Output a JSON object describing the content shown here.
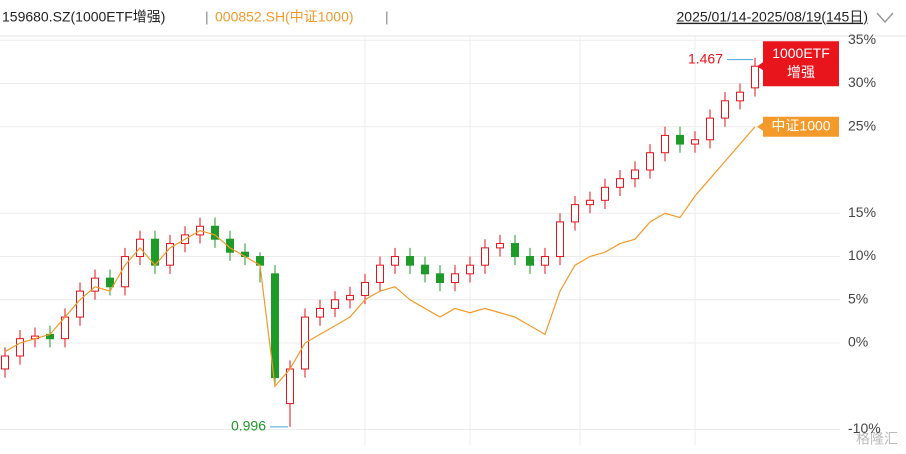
{
  "chart_data": {
    "type": "candlestick",
    "series": [
      {
        "name": "159680.SZ(1000ETF增强)",
        "color": "#e5131b",
        "down_color": "#1e9a28",
        "open": [
          -3,
          -1.5,
          0.5,
          1,
          0.5,
          3,
          6,
          7.5,
          6.5,
          10,
          12,
          9,
          11.5,
          12.5,
          13.5,
          12,
          10.5,
          10,
          8,
          -7,
          -3,
          3,
          4,
          5,
          5.5,
          7,
          9,
          10,
          9,
          8,
          7,
          8,
          9,
          11,
          11.5,
          10,
          9,
          10,
          14,
          16,
          16.5,
          18,
          19,
          20,
          22,
          24,
          23,
          23.5,
          26,
          28,
          29.5
        ],
        "high": [
          -0.5,
          1.5,
          1.8,
          2,
          4,
          7,
          8.5,
          8.5,
          11,
          13,
          13,
          12.5,
          13.5,
          14.5,
          14.5,
          13,
          11.5,
          10.5,
          9,
          -2,
          4,
          5,
          6,
          6.5,
          8,
          10,
          11,
          11,
          10,
          9,
          9,
          10,
          12,
          12.5,
          12.5,
          11,
          11,
          15,
          17,
          17.5,
          19,
          20,
          21,
          23,
          25,
          25,
          24.5,
          27,
          29,
          30,
          33
        ],
        "low": [
          -4,
          -2.5,
          -0.5,
          -0.5,
          -0.5,
          2,
          5,
          5.5,
          5.5,
          9,
          8,
          8,
          10.5,
          11.5,
          11,
          9.5,
          9,
          7,
          -5,
          -9.7,
          -4,
          2,
          3,
          4,
          4.5,
          6,
          8,
          8,
          7,
          6,
          6,
          7,
          8,
          10,
          9,
          8,
          8,
          9,
          13,
          15,
          15.5,
          17,
          18,
          19,
          21,
          22,
          22,
          22.5,
          25,
          27,
          28.5
        ],
        "close": [
          -1.5,
          0.5,
          0.8,
          0.5,
          3,
          6,
          7.5,
          6.5,
          10,
          12,
          9,
          11.5,
          12.5,
          13.5,
          12,
          10.5,
          10,
          9,
          -4,
          -3,
          3,
          4,
          5,
          5.5,
          7,
          9,
          10,
          9,
          8,
          7,
          8,
          9,
          11,
          11.5,
          10,
          9,
          10,
          14,
          16,
          16.5,
          18,
          19,
          20,
          22,
          24,
          23,
          23.5,
          26,
          28,
          29,
          32
        ]
      },
      {
        "name": "000852.SH(中证1000)",
        "color": "#f39a2b",
        "type": "line",
        "values": [
          -1,
          0,
          0.5,
          1,
          3,
          5,
          6.5,
          6,
          9,
          11,
          9,
          11,
          12,
          13,
          12.5,
          11,
          10,
          9,
          -5,
          -3,
          0,
          1,
          2,
          3,
          5,
          6,
          6.5,
          5,
          4,
          3,
          4,
          3.5,
          4,
          3.5,
          3,
          2,
          1,
          6,
          9,
          10,
          10.5,
          11.5,
          12,
          14,
          15,
          14.5,
          17,
          19,
          21,
          23,
          25
        ]
      }
    ],
    "date_range": "2025/01/14-2025/08/19(145日)",
    "ylim": [
      -11.5,
      36.5
    ],
    "yticks": [
      {
        "value": 35,
        "label": "35%"
      },
      {
        "value": 30,
        "label": "30%"
      },
      {
        "value": 25,
        "label": "25%"
      },
      {
        "value": 15,
        "label": "15%"
      },
      {
        "value": 10,
        "label": "10%"
      },
      {
        "value": 5,
        "label": "5%"
      },
      {
        "value": 0,
        "label": "0%"
      },
      {
        "value": -10,
        "label": "-10%"
      }
    ],
    "grid": true,
    "annotations": [
      {
        "text": "1.467",
        "color": "#e5131b"
      },
      {
        "text": "0.996",
        "color": "#1e9a28"
      }
    ],
    "end_labels": [
      [
        "1000ETF",
        "增强"
      ],
      [
        "中证1000"
      ]
    ],
    "watermark": "格隆汇"
  }
}
